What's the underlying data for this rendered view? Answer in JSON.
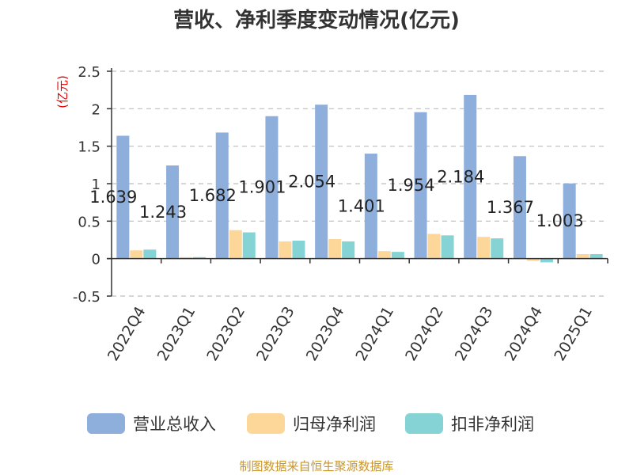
{
  "chart_data": {
    "type": "bar",
    "title": "营收、净利季度变动情况(亿元)",
    "unit_label": "(亿元)",
    "categories": [
      "2022Q4",
      "2023Q1",
      "2023Q2",
      "2023Q3",
      "2023Q4",
      "2024Q1",
      "2024Q2",
      "2024Q3",
      "2024Q4",
      "2025Q1"
    ],
    "series": [
      {
        "name": "营业总收入",
        "color": "#8eaedb",
        "values": [
          1.639,
          1.243,
          1.682,
          1.901,
          2.054,
          1.401,
          1.954,
          2.184,
          1.367,
          1.003
        ],
        "data_labels": [
          "1.639",
          "1.243",
          "1.682",
          "1.901",
          "2.054",
          "1.401",
          "1.954",
          "2.184",
          "1.367",
          "1.003"
        ]
      },
      {
        "name": "归母净利润",
        "color": "#fdd699",
        "values": [
          0.11,
          0.02,
          0.38,
          0.23,
          0.26,
          0.1,
          0.33,
          0.29,
          -0.03,
          0.06
        ]
      },
      {
        "name": "扣非净利润",
        "color": "#85d3d5",
        "values": [
          0.12,
          0.02,
          0.35,
          0.24,
          0.23,
          0.09,
          0.31,
          0.27,
          -0.05,
          0.06
        ]
      }
    ],
    "yticks": [
      "-0.5",
      "0",
      "0.5",
      "1",
      "1.5",
      "2",
      "2.5"
    ],
    "ylim": [
      -0.5,
      2.5
    ],
    "grid": true,
    "legend_position": "bottom"
  },
  "source": "制图数据来自恒生聚源数据库"
}
